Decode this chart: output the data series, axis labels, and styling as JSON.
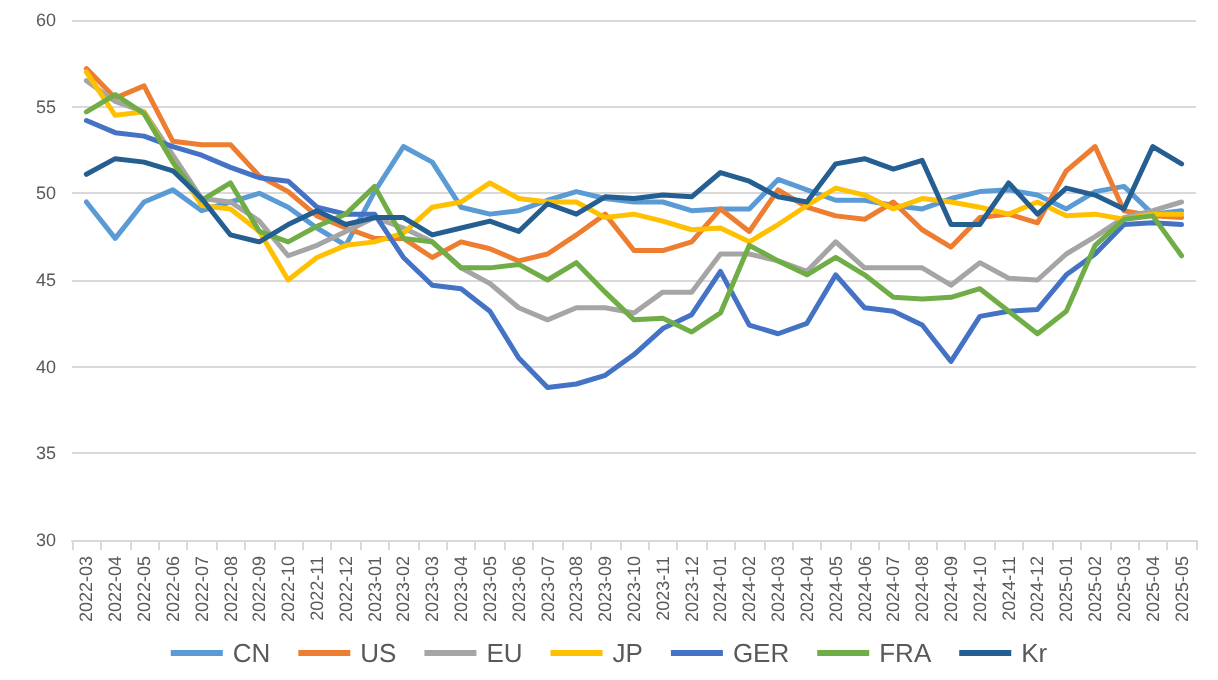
{
  "chart_data": {
    "type": "line",
    "categories": [
      "2022-03",
      "2022-04",
      "2022-05",
      "2022-06",
      "2022-07",
      "2022-08",
      "2022-09",
      "2022-10",
      "2022-11",
      "2022-12",
      "2023-01",
      "2023-02",
      "2023-03",
      "2023-04",
      "2023-05",
      "2023-06",
      "2023-07",
      "2023-08",
      "2023-09",
      "2023-10",
      "2023-11",
      "2023-12",
      "2024-01",
      "2024-02",
      "2024-03",
      "2024-04",
      "2024-05",
      "2024-06",
      "2024-07",
      "2024-08",
      "2024-09",
      "2024-10",
      "2024-11",
      "2024-12",
      "2025-01",
      "2025-02",
      "2025-03",
      "2025-04",
      "2025-05"
    ],
    "series": [
      {
        "name": "CN",
        "color": "#5b9bd5",
        "values": [
          49.5,
          47.4,
          49.5,
          50.2,
          49.0,
          49.5,
          50.0,
          49.2,
          48.0,
          47.0,
          50.1,
          52.7,
          51.8,
          49.2,
          48.8,
          49.0,
          49.6,
          50.1,
          49.7,
          49.5,
          49.5,
          49.0,
          49.1,
          49.1,
          50.8,
          50.2,
          49.6,
          49.6,
          49.3,
          49.1,
          49.7,
          50.1,
          50.2,
          49.9,
          49.1,
          50.1,
          50.4,
          48.8,
          49.0
        ]
      },
      {
        "name": "US",
        "color": "#ed7d31",
        "values": [
          57.2,
          55.5,
          56.2,
          53.0,
          52.8,
          52.8,
          51.0,
          50.1,
          48.7,
          48.0,
          47.4,
          47.4,
          46.3,
          47.2,
          46.8,
          46.1,
          46.5,
          47.6,
          48.8,
          46.7,
          46.7,
          47.2,
          49.1,
          47.8,
          50.2,
          49.2,
          48.7,
          48.5,
          49.5,
          47.9,
          46.9,
          48.6,
          48.8,
          48.3,
          51.3,
          52.7,
          49.0,
          48.7,
          48.6
        ]
      },
      {
        "name": "EU",
        "color": "#a5a5a5",
        "values": [
          56.5,
          55.3,
          54.7,
          52.2,
          49.7,
          49.5,
          48.4,
          46.4,
          47.0,
          47.8,
          48.6,
          48.0,
          47.2,
          45.7,
          44.8,
          43.4,
          42.7,
          43.4,
          43.4,
          43.1,
          44.3,
          44.3,
          46.5,
          46.5,
          46.1,
          45.5,
          47.2,
          45.7,
          45.7,
          45.7,
          44.7,
          46.0,
          45.1,
          45.0,
          46.5,
          47.5,
          48.6,
          49.0,
          49.5
        ]
      },
      {
        "name": "JP",
        "color": "#ffc000",
        "values": [
          57.0,
          54.5,
          54.7,
          51.8,
          49.3,
          49.1,
          47.8,
          45.0,
          46.3,
          47.0,
          47.2,
          47.7,
          49.2,
          49.5,
          50.6,
          49.7,
          49.5,
          49.5,
          48.6,
          48.8,
          48.4,
          47.9,
          48.0,
          47.2,
          48.2,
          49.3,
          50.3,
          49.9,
          49.1,
          49.7,
          49.5,
          49.2,
          48.8,
          49.5,
          48.7,
          48.8,
          48.5,
          48.8,
          48.8
        ]
      },
      {
        "name": "GER",
        "color": "#4472c4",
        "values": [
          54.2,
          53.5,
          53.3,
          52.7,
          52.2,
          51.5,
          50.9,
          50.7,
          49.2,
          48.8,
          48.8,
          46.3,
          44.7,
          44.5,
          43.2,
          40.5,
          38.8,
          39.0,
          39.5,
          40.7,
          42.2,
          43.0,
          45.5,
          42.4,
          41.9,
          42.5,
          45.3,
          43.4,
          43.2,
          42.4,
          40.3,
          42.9,
          43.2,
          43.3,
          45.3,
          46.5,
          48.2,
          48.3,
          48.2
        ]
      },
      {
        "name": "FRA",
        "color": "#70ad47",
        "values": [
          54.7,
          55.7,
          54.6,
          51.8,
          49.6,
          50.6,
          47.8,
          47.2,
          48.1,
          48.8,
          50.4,
          47.4,
          47.2,
          45.7,
          45.7,
          45.9,
          45.0,
          46.0,
          44.3,
          42.7,
          42.8,
          42.0,
          43.1,
          47.0,
          46.1,
          45.3,
          46.3,
          45.3,
          44.0,
          43.9,
          44.0,
          44.5,
          43.2,
          41.9,
          43.2,
          47.0,
          48.5,
          48.7,
          46.4
        ]
      },
      {
        "name": "Kr",
        "color": "#255e91",
        "values": [
          51.1,
          52.0,
          51.8,
          51.3,
          49.7,
          47.6,
          47.2,
          48.2,
          49.0,
          48.2,
          48.6,
          48.6,
          47.6,
          48.0,
          48.4,
          47.8,
          49.4,
          48.8,
          49.8,
          49.7,
          49.9,
          49.8,
          51.2,
          50.7,
          49.8,
          49.5,
          51.7,
          52.0,
          51.4,
          51.9,
          48.2,
          48.2,
          50.6,
          48.8,
          50.3,
          49.9,
          49.1,
          52.7,
          51.7
        ]
      }
    ],
    "ylim": [
      30,
      60
    ],
    "yticks": [
      30,
      35,
      40,
      45,
      50,
      55,
      60
    ],
    "grid": "y",
    "legend": "bottom",
    "marker": "none",
    "line_style": "solid"
  }
}
